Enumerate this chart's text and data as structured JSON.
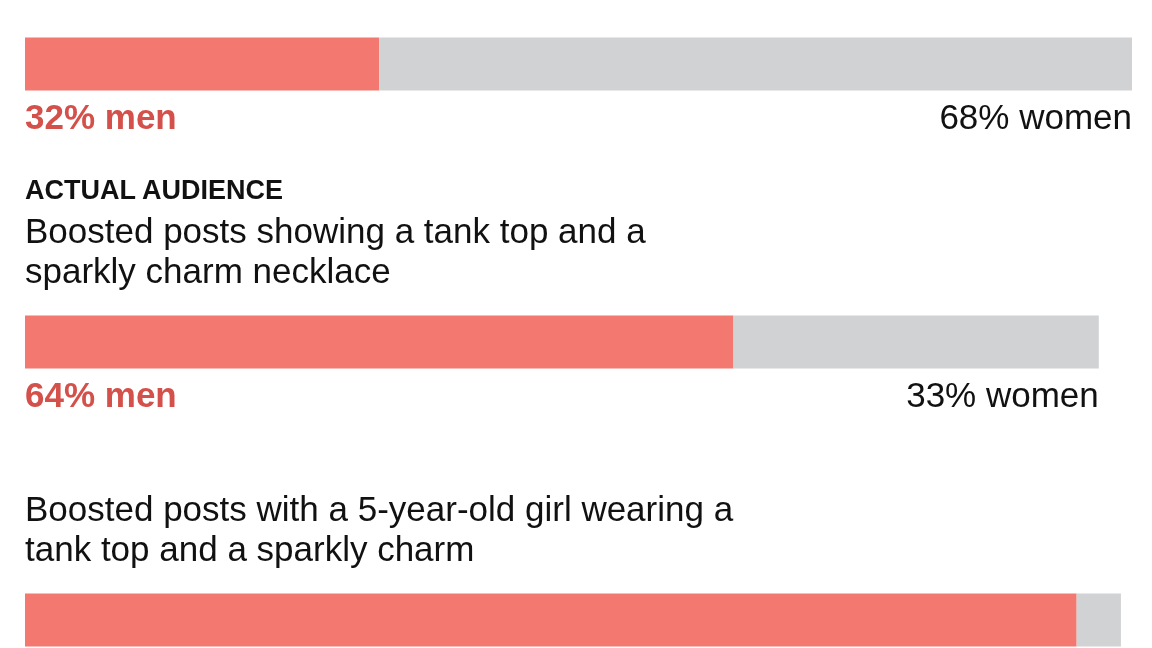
{
  "chart_data": {
    "type": "bar",
    "orientation": "horizontal",
    "stacked": true,
    "categories": [
      null,
      "Boosted posts showing a tank top and a sparkly charm necklace",
      "Boosted posts with a 5-year-old girl wearing a tank top and a sparkly charm"
    ],
    "series": [
      {
        "color": "#f27870",
        "values": [
          32,
          64,
          95
        ],
        "value_labels": [
          "32% men",
          "64% men",
          null
        ]
      },
      {
        "color": "#d1d2d4",
        "values": [
          68,
          33,
          4
        ],
        "value_labels": [
          "68% women",
          "33% women",
          null
        ]
      }
    ],
    "tick_labels": "y",
    "annotations": [
      "ACTUAL AUDIENCE"
    ]
  }
}
